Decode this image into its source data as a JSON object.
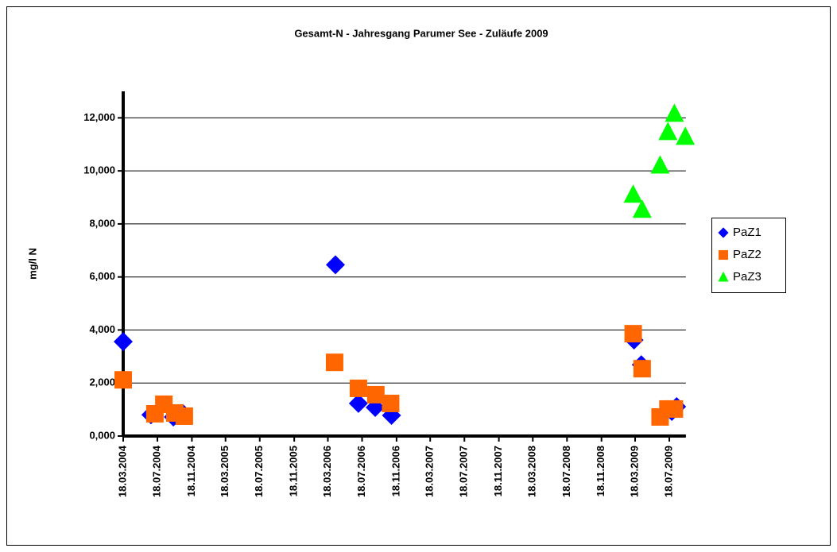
{
  "chart_data": {
    "type": "scatter",
    "title": "Gesamt-N - Jahresgang Parumer See  -  Zuläufe 2009",
    "y_label": "mg/l N",
    "xlim": [
      "18.03.2004",
      "15.09.2009"
    ],
    "xticks": [
      "18.03.2004",
      "18.07.2004",
      "18.11.2004",
      "18.03.2005",
      "18.07.2005",
      "18.11.2005",
      "18.03.2006",
      "18.07.2006",
      "18.11.2006",
      "18.03.2007",
      "18.07.2007",
      "18.11.2007",
      "18.03.2008",
      "18.07.2008",
      "18.11.2008",
      "18.03.2009",
      "18.07.2009"
    ],
    "ylim": [
      0,
      13
    ],
    "yticks": [
      {
        "value": 0,
        "label": "0,000"
      },
      {
        "value": 2,
        "label": "2,000"
      },
      {
        "value": 4,
        "label": "4,000"
      },
      {
        "value": 6,
        "label": "6,000"
      },
      {
        "value": 8,
        "label": "8,000"
      },
      {
        "value": 10,
        "label": "10,000"
      },
      {
        "value": 12,
        "label": "12,000"
      }
    ],
    "grid": true,
    "legend": "right",
    "series": [
      {
        "name": "PaZ1",
        "color": "#0000ff",
        "marker": "diamond",
        "x": [
          "18.03.2004",
          "25.06.2004",
          "13.09.2004",
          "17.10.2004",
          "14.04.2006",
          "05.07.2006",
          "03.09.2006",
          "31.10.2006",
          "14.03.2009",
          "09.04.2009",
          "27.07.2009",
          "13.08.2009"
        ],
        "values": [
          3.56,
          0.8,
          0.72,
          0.85,
          6.46,
          1.23,
          1.08,
          0.78,
          3.62,
          2.69,
          0.93,
          1.11
        ]
      },
      {
        "name": "PaZ2",
        "color": "#ff6600",
        "marker": "square",
        "x": [
          "18.03.2004",
          "09.07.2004",
          "10.08.2004",
          "18.09.2004",
          "22.10.2004",
          "11.04.2006",
          "05.07.2006",
          "05.09.2006",
          "28.10.2006",
          "11.03.2009",
          "12.04.2009",
          "15.06.2009",
          "13.07.2009",
          "05.08.2009"
        ],
        "values": [
          2.12,
          0.84,
          1.2,
          0.87,
          0.75,
          2.78,
          1.8,
          1.56,
          1.23,
          3.86,
          2.54,
          0.72,
          1.02,
          1.02
        ]
      },
      {
        "name": "PaZ3",
        "color": "#00ff00",
        "marker": "triangle",
        "x": [
          "11.03.2009",
          "12.04.2009",
          "15.06.2009",
          "13.07.2009",
          "05.08.2009",
          "13.09.2009"
        ],
        "values": [
          9.1,
          8.53,
          10.2,
          11.46,
          12.15,
          11.28
        ]
      }
    ]
  }
}
